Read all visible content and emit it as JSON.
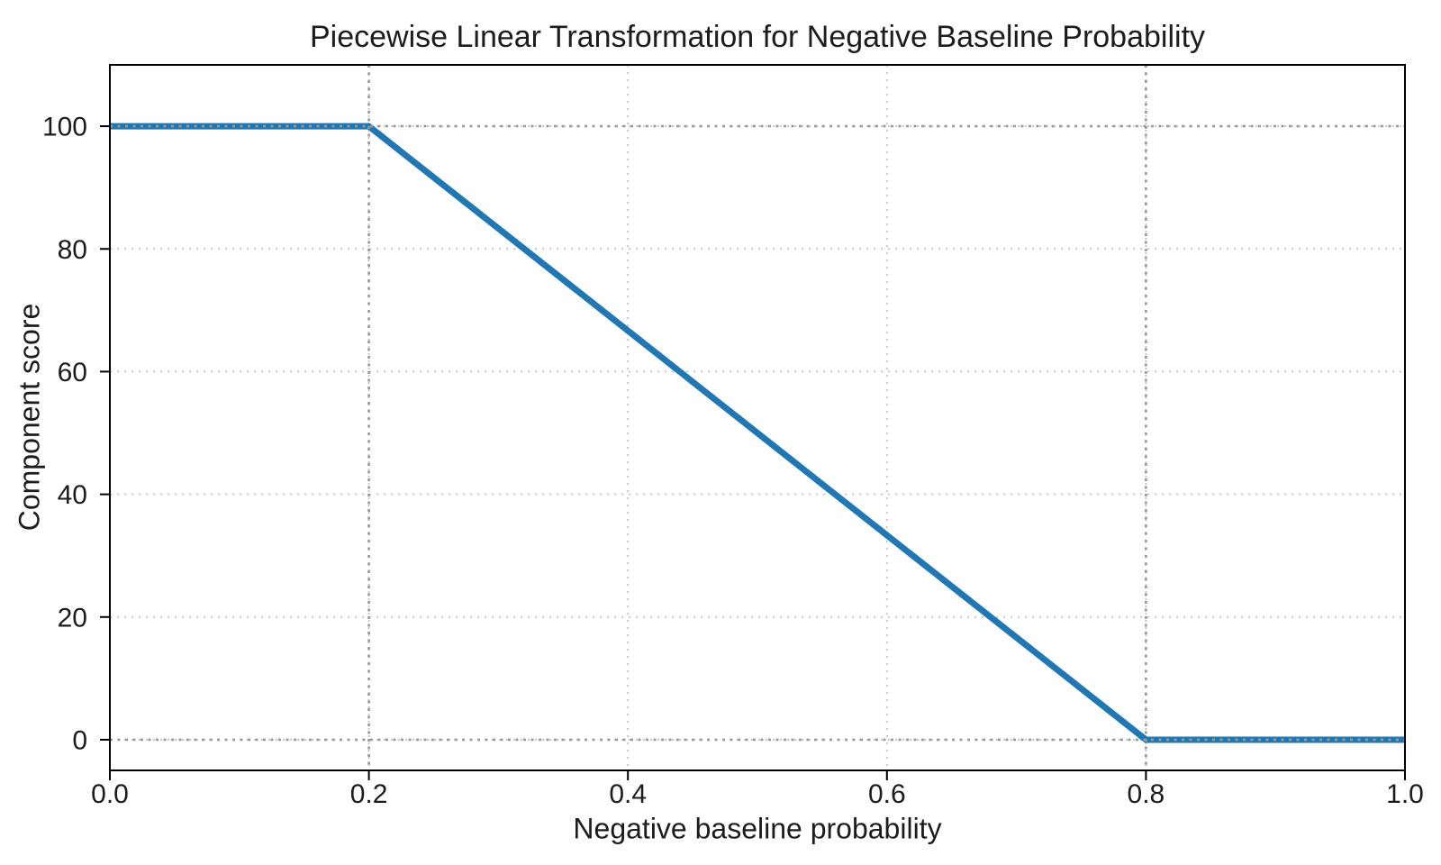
{
  "chart_data": {
    "type": "line",
    "title": "Piecewise Linear Transformation for Negative Baseline Probability",
    "xlabel": "Negative baseline probability",
    "ylabel": "Component score",
    "xlim": [
      0,
      1
    ],
    "ylim": [
      -5,
      110
    ],
    "xticks": [
      0.0,
      0.2,
      0.4,
      0.6,
      0.8,
      1.0
    ],
    "xtick_labels": [
      "0.0",
      "0.2",
      "0.4",
      "0.6",
      "0.8",
      "1.0"
    ],
    "yticks": [
      0,
      20,
      40,
      60,
      80,
      100
    ],
    "ytick_labels": [
      "0",
      "20",
      "40",
      "60",
      "80",
      "100"
    ],
    "grid": {
      "show": true,
      "style": "dotted",
      "color": "#c9c9c9"
    },
    "reference_lines": {
      "x": [
        0.2,
        0.8
      ],
      "y": [
        0,
        100
      ],
      "style": "dotted",
      "color": "#9a9a9a"
    },
    "series": [
      {
        "name": "Component score",
        "x": [
          0.0,
          0.2,
          0.8,
          1.0
        ],
        "y": [
          100,
          100,
          0,
          0
        ],
        "color": "#1f77b4",
        "linewidth": 7
      }
    ],
    "legend": {
      "show": false
    },
    "colors": {
      "accent": "#1f77b4",
      "spine": "#000000",
      "text": "#1c1c1c",
      "background": "#ffffff"
    }
  }
}
